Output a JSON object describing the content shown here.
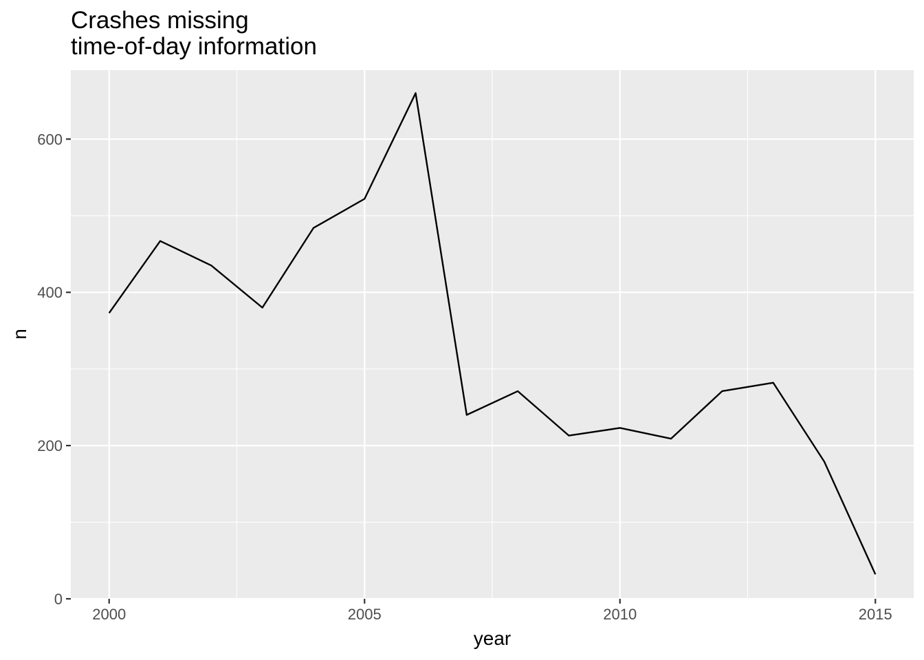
{
  "chart_data": {
    "type": "line",
    "title": [
      "Crashes missing",
      "time-of-day information"
    ],
    "xlabel": "year",
    "ylabel": "n",
    "xlim": [
      1999.25,
      2015.75
    ],
    "ylim": [
      0,
      690
    ],
    "x_ticks": [
      2000,
      2005,
      2010,
      2015
    ],
    "x_minor": [
      2002.5,
      2007.5,
      2012.5
    ],
    "y_ticks": [
      0,
      200,
      400,
      600
    ],
    "y_minor": [
      100,
      300,
      500
    ],
    "grid": true,
    "legend": "none",
    "series": [
      {
        "name": "n",
        "color": "#000000",
        "x": [
          2000,
          2001,
          2002,
          2003,
          2004,
          2005,
          2006,
          2007,
          2008,
          2009,
          2010,
          2011,
          2012,
          2013,
          2014,
          2015
        ],
        "values": [
          373,
          467,
          435,
          380,
          484,
          522,
          660,
          240,
          271,
          213,
          223,
          209,
          271,
          282,
          179,
          32
        ]
      }
    ],
    "colors": {
      "panel": "#ebebeb",
      "grid": "#ffffff",
      "tick": "#333333",
      "tick_text": "#4d4d4d"
    }
  }
}
